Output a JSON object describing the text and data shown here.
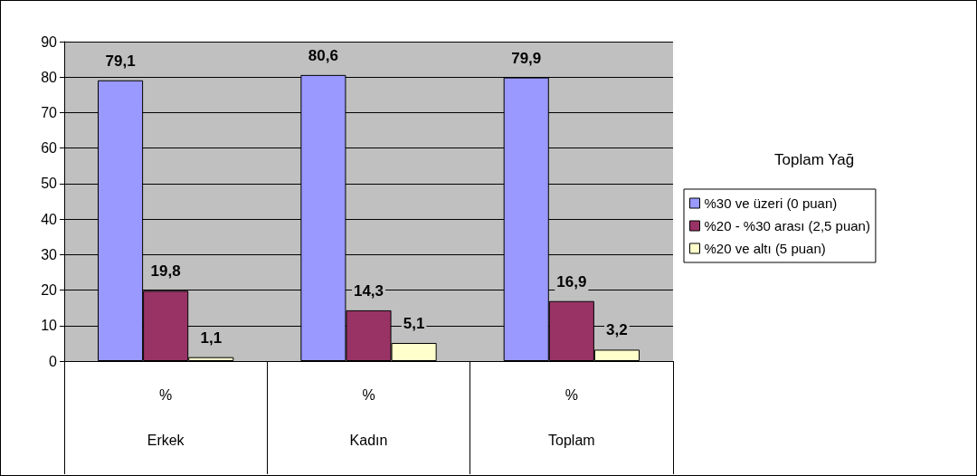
{
  "chart_data": {
    "type": "bar",
    "legend_title": "Toplam Yağ",
    "categories": [
      "%\nErkek",
      "%\nKadın",
      "%\nToplam"
    ],
    "series": [
      {
        "name": "%30 ve üzeri (0 puan)",
        "color": "#9999ff",
        "values": [
          79.1,
          80.6,
          79.9
        ],
        "value_labels": [
          "79,1",
          "80,6",
          "79,9"
        ]
      },
      {
        "name": "%20 - %30 arası (2,5 puan)",
        "color": "#993366",
        "values": [
          19.8,
          14.3,
          16.9
        ],
        "value_labels": [
          "19,8",
          "14,3",
          "16,9"
        ]
      },
      {
        "name": "%20 ve altı (5 puan)",
        "color": "#ffffcc",
        "values": [
          1.1,
          5.1,
          3.2
        ],
        "value_labels": [
          "1,1",
          "5,1",
          "3,2"
        ]
      }
    ],
    "ylim": [
      0,
      90
    ],
    "yticks": [
      0,
      10,
      20,
      30,
      40,
      50,
      60,
      70,
      80,
      90
    ],
    "grid": "y",
    "legend": "right"
  }
}
